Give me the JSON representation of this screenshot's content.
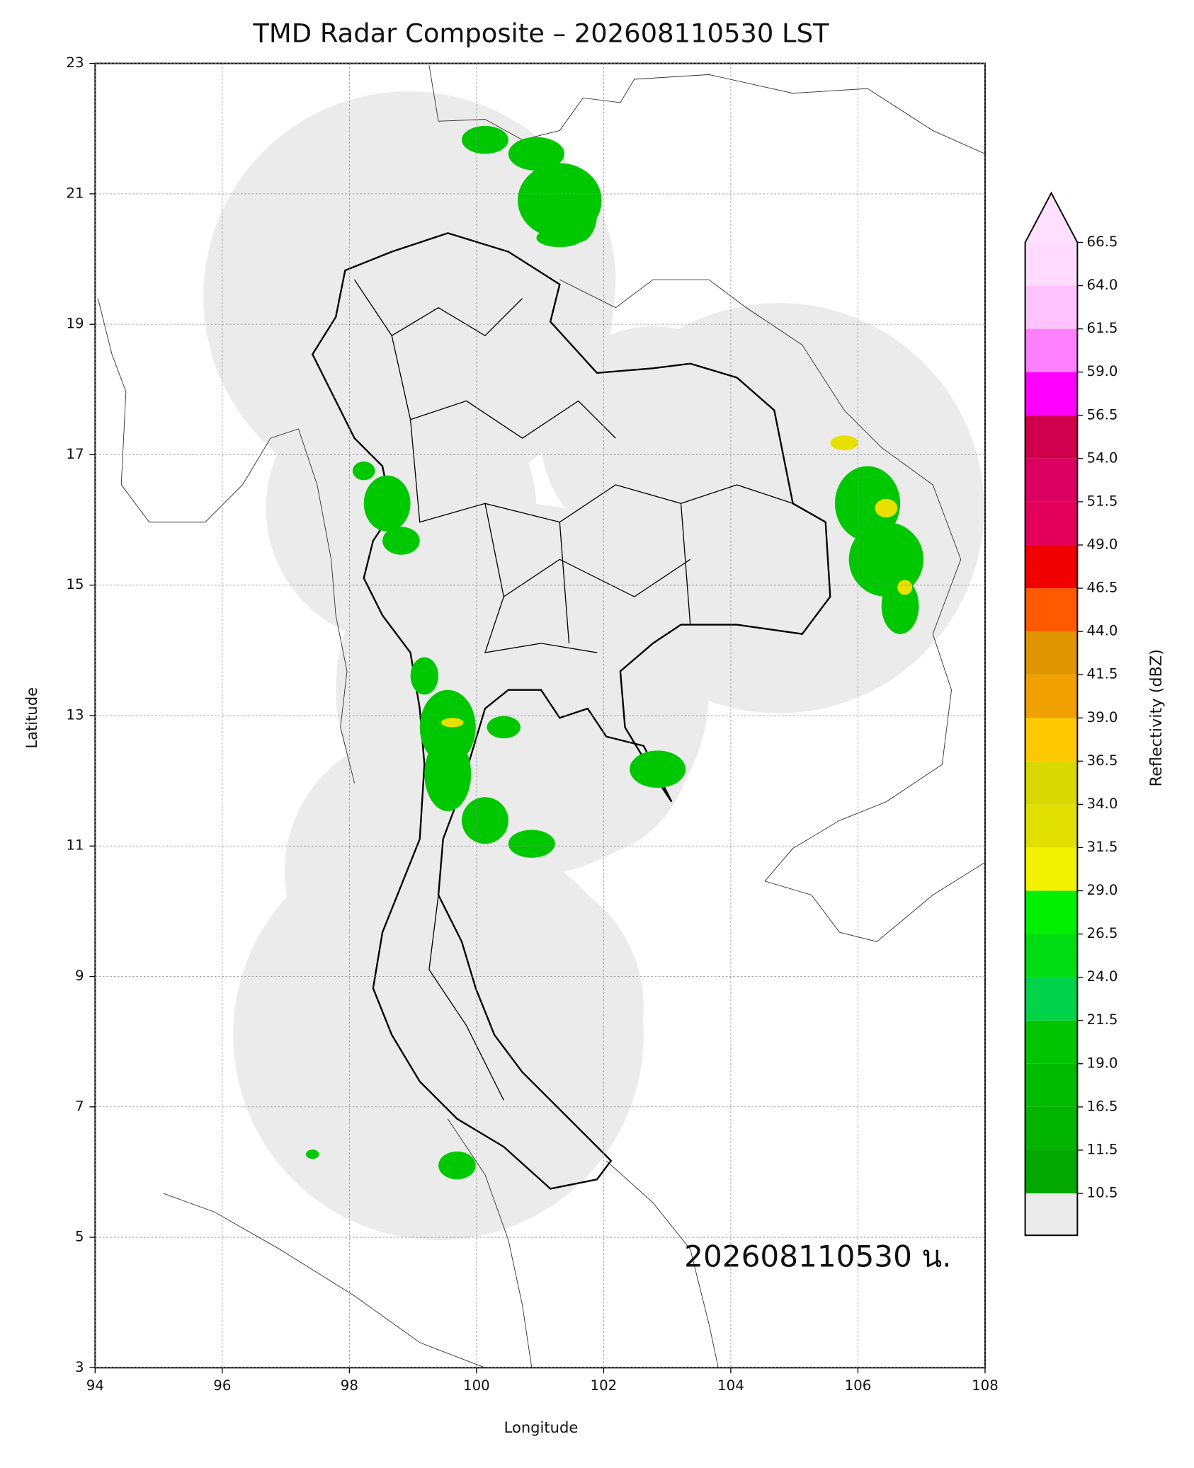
{
  "map": {
    "title": "TMD Radar Composite – 202608110530 LST",
    "xlabel": "Longitude",
    "ylabel": "Latitude",
    "xlim": [
      94,
      108
    ],
    "ylim": [
      3,
      23
    ],
    "xticks": [
      94,
      96,
      98,
      100,
      102,
      104,
      106,
      108
    ],
    "yticks": [
      3,
      5,
      7,
      9,
      11,
      13,
      15,
      17,
      19,
      21,
      23
    ],
    "grid": true,
    "annotation": "202608110530 น.",
    "colorbar": {
      "label": "Reflectivity (dBZ)",
      "ticks": [
        10.5,
        11.5,
        16.5,
        {
          "value": 19,
          "label": "19.0"
        },
        21.5,
        {
          "value": 24,
          "label": "24.0"
        },
        26.5,
        {
          "value": 29,
          "label": "29.0"
        },
        31.5,
        {
          "value": 34,
          "label": "34.0"
        },
        36.5,
        {
          "value": 39,
          "label": "39.0"
        },
        41.5,
        {
          "value": 44,
          "label": "44.0"
        },
        46.5,
        {
          "value": 49,
          "label": "49.0"
        },
        51.5,
        {
          "value": 54,
          "label": "54.0"
        },
        56.5,
        {
          "value": 59,
          "label": "59.0"
        },
        61.5,
        {
          "value": 64,
          "label": "64.0"
        },
        66.5
      ],
      "colors": [
        "#00a800",
        "#00b400",
        "#00bc00",
        "#00c400",
        "#00d24a",
        "#00dc14",
        "#00f000",
        "#f2f200",
        "#e2e000",
        "#d8d800",
        "#ffc800",
        "#f0a000",
        "#e09600",
        "#ff5a00",
        "#f00000",
        "#e4005a",
        "#dc0060",
        "#d0004c",
        "#ff00ff",
        "#ff80ff",
        "#ffc4ff",
        "#ffdcff"
      ],
      "over_color": "#ffe0ff",
      "under_color": "#ebebeb"
    }
  }
}
